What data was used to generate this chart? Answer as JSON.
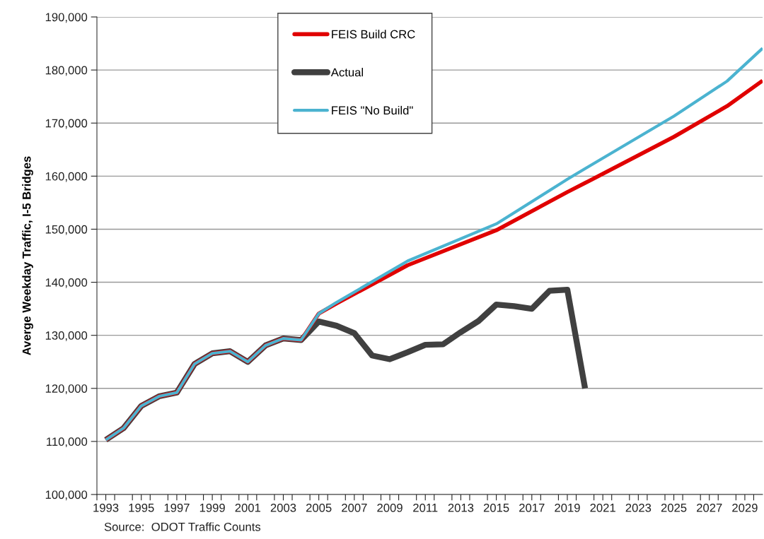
{
  "chart_data": {
    "type": "line",
    "ylabel": "Averge Weekday Traffic, I-5 Bridges",
    "annotations": [
      "Source:  ODOT Traffic Counts"
    ],
    "series": [
      {
        "name": "FEIS Build CRC",
        "color": "#e00000",
        "x": [
          1993,
          1994,
          1995,
          1996,
          1997,
          1998,
          1999,
          2000,
          2001,
          2002,
          2003,
          2004,
          2005,
          2006,
          2010,
          2015,
          2019,
          2020,
          2025,
          2028,
          2030
        ],
        "values": [
          110300,
          112500,
          116700,
          118500,
          119200,
          124600,
          126600,
          127000,
          125000,
          128100,
          129400,
          129100,
          134100,
          136000,
          143200,
          149800,
          157000,
          158700,
          167400,
          173200,
          178000
        ]
      },
      {
        "name": "Actual",
        "color": "#404040",
        "x": [
          1993,
          1994,
          1995,
          1996,
          1997,
          1998,
          1999,
          2000,
          2001,
          2002,
          2003,
          2004,
          2005,
          2006,
          2007,
          2008,
          2009,
          2010,
          2011,
          2012,
          2013,
          2014,
          2015,
          2016,
          2017,
          2018,
          2019,
          2020
        ],
        "values": [
          110300,
          112500,
          116700,
          118500,
          119200,
          124600,
          126600,
          127000,
          125000,
          128100,
          129400,
          129100,
          132600,
          131800,
          130400,
          126200,
          125500,
          126800,
          128200,
          128300,
          130600,
          132700,
          135800,
          135500,
          135000,
          138400,
          138600,
          120000
        ]
      },
      {
        "name": "FEIS \"No Build\"",
        "color": "#4bb3d0",
        "x": [
          1993,
          1994,
          1995,
          1996,
          1997,
          1998,
          1999,
          2000,
          2001,
          2002,
          2003,
          2004,
          2005,
          2006,
          2010,
          2015,
          2019,
          2020,
          2025,
          2028,
          2030
        ],
        "values": [
          110300,
          112500,
          116700,
          118500,
          119200,
          124600,
          126600,
          127000,
          125000,
          128100,
          129400,
          129100,
          134100,
          136200,
          144000,
          151000,
          159400,
          161400,
          171300,
          177900,
          184100
        ]
      }
    ],
    "xlim": [
      1992.5,
      2030
    ],
    "xticks": [
      {
        "value": 1992.5,
        "label": null
      },
      1993,
      {
        "value": 1993.5,
        "label": null
      },
      {
        "value": 1994.5,
        "label": null
      },
      1995,
      {
        "value": 1995.5,
        "label": null
      },
      {
        "value": 1996.5,
        "label": null
      },
      1997,
      {
        "value": 1997.5,
        "label": null
      },
      {
        "value": 1998.5,
        "label": null
      },
      1999,
      {
        "value": 1999.5,
        "label": null
      },
      {
        "value": 2000.5,
        "label": null
      },
      2001,
      {
        "value": 2001.5,
        "label": null
      },
      {
        "value": 2002.5,
        "label": null
      },
      2003,
      {
        "value": 2003.5,
        "label": null
      },
      {
        "value": 2004.5,
        "label": null
      },
      2005,
      {
        "value": 2005.5,
        "label": null
      },
      {
        "value": 2006.5,
        "label": null
      },
      2007,
      {
        "value": 2007.5,
        "label": null
      },
      {
        "value": 2008.5,
        "label": null
      },
      2009,
      {
        "value": 2009.5,
        "label": null
      },
      {
        "value": 2010.5,
        "label": null
      },
      2011,
      {
        "value": 2011.5,
        "label": null
      },
      {
        "value": 2012.5,
        "label": null
      },
      2013,
      {
        "value": 2013.5,
        "label": null
      },
      {
        "value": 2014.5,
        "label": null
      },
      2015,
      {
        "value": 2015.5,
        "label": null
      },
      {
        "value": 2016.5,
        "label": null
      },
      2017,
      {
        "value": 2017.5,
        "label": null
      },
      {
        "value": 2018.5,
        "label": null
      },
      2019,
      {
        "value": 2019.5,
        "label": null
      },
      {
        "value": 2020.5,
        "label": null
      },
      2021,
      {
        "value": 2021.5,
        "label": null
      },
      {
        "value": 2022.5,
        "label": null
      },
      2023,
      {
        "value": 2023.5,
        "label": null
      },
      {
        "value": 2024.5,
        "label": null
      },
      2025,
      {
        "value": 2025.5,
        "label": null
      },
      {
        "value": 2026.5,
        "label": null
      },
      2027,
      {
        "value": 2027.5,
        "label": null
      },
      {
        "value": 2028.5,
        "label": null
      },
      2029,
      {
        "value": 2029.5,
        "label": null
      }
    ],
    "ylim": [
      100000,
      190000
    ],
    "yticks": [
      {
        "value": 100000,
        "label": "100,000"
      },
      {
        "value": 110000,
        "label": "110,000"
      },
      {
        "value": 120000,
        "label": "120,000"
      },
      {
        "value": 130000,
        "label": "130,000"
      },
      {
        "value": 140000,
        "label": "140,000"
      },
      {
        "value": 150000,
        "label": "150,000"
      },
      {
        "value": 160000,
        "label": "160,000"
      },
      {
        "value": 170000,
        "label": "170,000"
      },
      {
        "value": 180000,
        "label": "180,000"
      },
      {
        "value": 190000,
        "label": "190,000"
      }
    ],
    "grid": "y",
    "legend": "top",
    "marker": "none",
    "line_style": "solid"
  }
}
